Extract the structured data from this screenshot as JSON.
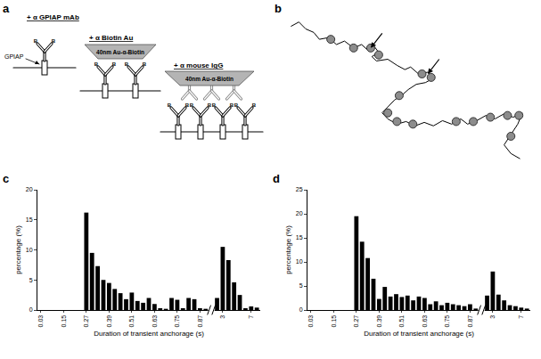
{
  "panel_letters": [
    "a",
    "b",
    "c",
    "d"
  ],
  "diagram": {
    "membrane_protein": "GPIAP",
    "biotin": "B",
    "steps": [
      {
        "label": "+ α GPIAP mAb"
      },
      {
        "label": "+ α Biotin Au",
        "particle": "40nm Au-α-Biotin"
      },
      {
        "label": "+ α mouse IgG",
        "particle": "40nm Au-α-Biotin"
      }
    ]
  },
  "chart_data": [
    {
      "type": "line",
      "tick_labels": false,
      "xlim": [
        -5,
        210
      ],
      "ylim": [
        -5,
        170
      ],
      "series": [
        {
          "type": "line",
          "color": "#000000",
          "x": [
            0,
            7,
            13,
            20,
            25,
            33,
            40,
            47,
            55,
            62,
            67,
            73,
            77,
            71,
            75,
            85,
            93,
            100,
            105,
            112,
            120,
            125,
            118,
            110,
            103,
            97,
            91,
            85,
            80,
            85,
            93,
            101,
            109,
            117,
            125,
            133,
            141,
            149,
            155,
            163,
            171,
            179,
            187,
            195,
            203,
            199,
            193,
            187,
            193,
            201
          ],
          "y": [
            155,
            160,
            152,
            148,
            140,
            142,
            134,
            138,
            130,
            134,
            128,
            132,
            125,
            120,
            115,
            117,
            110,
            105,
            108,
            100,
            102,
            95,
            90,
            88,
            82,
            75,
            70,
            62,
            55,
            48,
            42,
            45,
            40,
            44,
            40,
            46,
            42,
            48,
            42,
            46,
            52,
            48,
            54,
            50,
            55,
            42,
            30,
            18,
            8,
            2
          ]
        },
        {
          "type": "scatter",
          "marker": "circle",
          "color": "#8c8c8c",
          "x": [
            35,
            55,
            70,
            77,
            115,
            123,
            95,
            85,
            93,
            107,
            145,
            160,
            175,
            190,
            200,
            193
          ],
          "y": [
            140,
            130,
            130,
            122,
            100,
            96,
            75,
            55,
            45,
            42,
            45,
            45,
            50,
            52,
            52,
            28
          ]
        }
      ],
      "arrows": [
        {
          "x": 70,
          "y": 130
        },
        {
          "x": 120,
          "y": 100
        }
      ]
    },
    {
      "type": "bar",
      "color": "#000000",
      "x_label": "Duration of transient anchorage (s)",
      "y_label": "percentage (%)",
      "categories": [
        "0.03",
        null,
        null,
        null,
        "0.15",
        null,
        null,
        null,
        "0.27",
        null,
        null,
        null,
        "0.39",
        null,
        null,
        null,
        "0.51",
        null,
        null,
        null,
        "0.63",
        null,
        null,
        null,
        "0.75",
        null,
        null,
        null,
        "0.87",
        null,
        null,
        null,
        "3",
        null,
        null,
        null,
        null,
        "7",
        null
      ],
      "values": [
        0,
        0,
        0,
        0,
        0,
        0,
        0,
        0,
        16.2,
        9.5,
        7.3,
        5.0,
        4.5,
        3.5,
        2.8,
        1.8,
        2.9,
        1.5,
        1.2,
        2.0,
        1.0,
        0.3,
        0.2,
        2.0,
        1.7,
        0.3,
        2.0,
        1.8,
        0.3,
        0.2,
        null,
        2.0,
        10.5,
        8.3,
        4.6,
        2.5,
        0.3,
        0.6,
        0.4
      ],
      "ylim": [
        0,
        20
      ],
      "yticks": [
        0,
        5,
        10,
        15,
        20
      ],
      "grid": false
    },
    {
      "type": "bar",
      "color": "#000000",
      "x_label": "Duration of transient anchorage (s)",
      "y_label": "percentage (%)",
      "categories": [
        "0.03",
        null,
        null,
        null,
        "0.15",
        null,
        null,
        null,
        "0.27",
        null,
        null,
        null,
        "0.39",
        null,
        null,
        null,
        "0.51",
        null,
        null,
        null,
        "0.63",
        null,
        null,
        null,
        "0.75",
        null,
        null,
        null,
        "0.87",
        null,
        null,
        null,
        "3",
        null,
        null,
        null,
        null,
        "7",
        null
      ],
      "values": [
        0,
        0,
        0,
        0,
        0,
        0,
        0,
        0,
        19.5,
        14.2,
        10.8,
        6.5,
        2.3,
        4.8,
        2.8,
        3.3,
        2.7,
        3.0,
        2.0,
        2.8,
        2.5,
        1.2,
        1.8,
        1.0,
        1.5,
        1.2,
        1.0,
        0.8,
        1.2,
        0.3,
        null,
        3.0,
        8.0,
        3.2,
        2.0,
        1.0,
        0.8,
        0.5,
        0.3
      ],
      "ylim": [
        0,
        25
      ],
      "yticks": [
        0,
        5,
        10,
        15,
        20,
        25
      ],
      "grid": false
    }
  ]
}
